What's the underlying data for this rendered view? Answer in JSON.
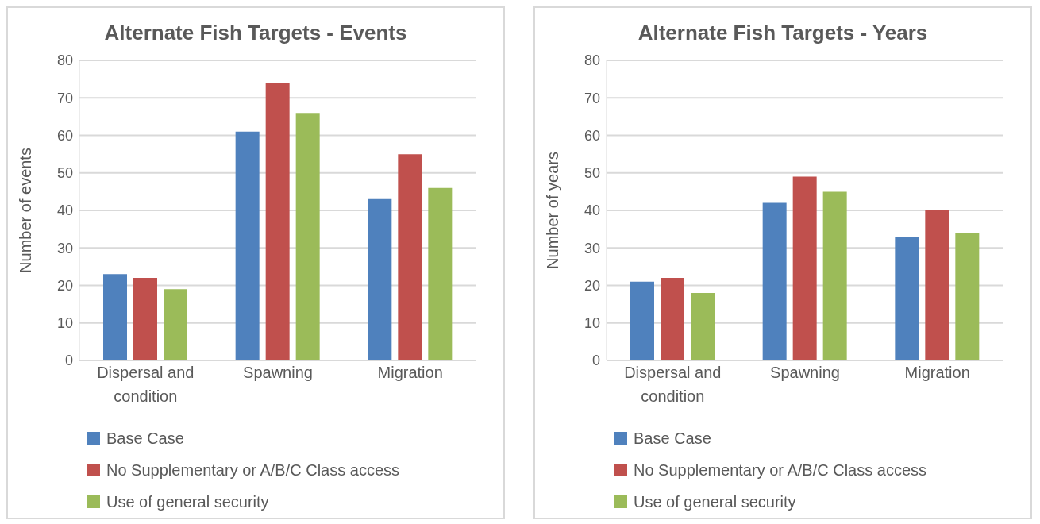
{
  "chart_data": [
    {
      "type": "bar",
      "title": "Alternate Fish Targets - Events",
      "ylabel": "Number of events",
      "categories": [
        "Dispersal and condition",
        "Spawning",
        "Migration"
      ],
      "series": [
        {
          "name": "Base Case",
          "color": "#4f81bd",
          "values": [
            23,
            61,
            43
          ]
        },
        {
          "name": "No Supplementary or A/B/C Class access",
          "color": "#c0504d",
          "values": [
            22,
            74,
            55
          ]
        },
        {
          "name": "Use of general security",
          "color": "#9bbb59",
          "values": [
            19,
            66,
            46
          ]
        }
      ],
      "ylim": [
        0,
        80
      ],
      "yticks": [
        0,
        10,
        20,
        30,
        40,
        50,
        60,
        70,
        80
      ],
      "grid": "y",
      "legend": "bottom left"
    },
    {
      "type": "bar",
      "title": "Alternate Fish Targets - Years",
      "ylabel": "Number of years",
      "categories": [
        "Dispersal and condition",
        "Spawning",
        "Migration"
      ],
      "series": [
        {
          "name": "Base Case",
          "color": "#4f81bd",
          "values": [
            21,
            42,
            33
          ]
        },
        {
          "name": "No Supplementary or A/B/C Class access",
          "color": "#c0504d",
          "values": [
            22,
            49,
            40
          ]
        },
        {
          "name": "Use of general security",
          "color": "#9bbb59",
          "values": [
            18,
            45,
            34
          ]
        }
      ],
      "ylim": [
        0,
        80
      ],
      "yticks": [
        0,
        10,
        20,
        30,
        40,
        50,
        60,
        70,
        80
      ],
      "grid": "y",
      "legend": "bottom left"
    }
  ]
}
